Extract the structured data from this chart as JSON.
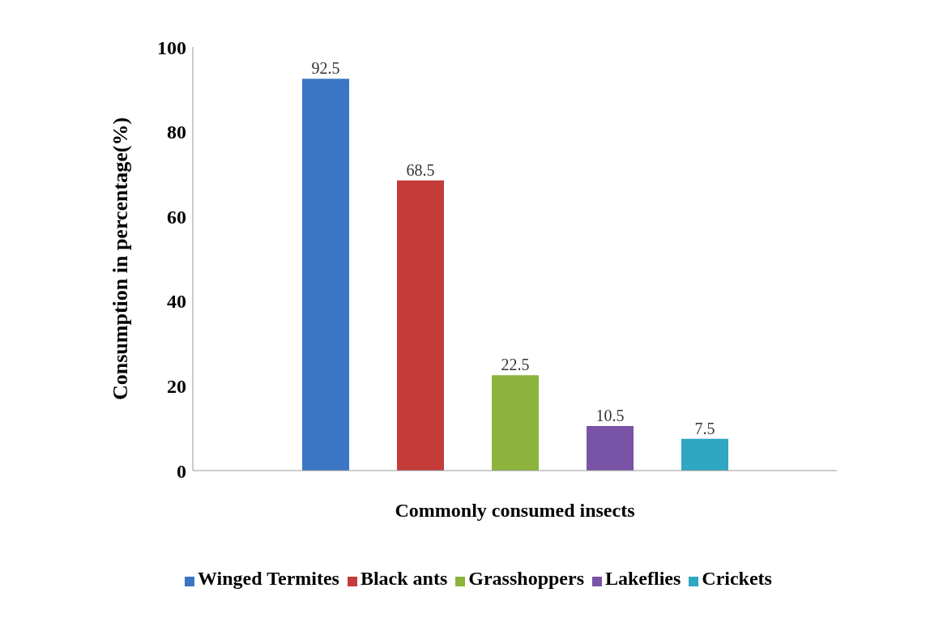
{
  "chart_data": {
    "type": "bar",
    "xlabel": "Commonly consumed insects",
    "ylabel": "Consumption in percentage(%)",
    "categories": [
      null
    ],
    "series": [
      {
        "name": "Winged Termites",
        "color": "#3a76c4",
        "values": [
          92.5
        ]
      },
      {
        "name": "Black ants",
        "color": "#c43b39",
        "values": [
          68.5
        ]
      },
      {
        "name": "Grasshoppers",
        "color": "#8cb43c",
        "values": [
          22.5
        ]
      },
      {
        "name": "Lakeflies",
        "color": "#7853a6",
        "values": [
          10.5
        ]
      },
      {
        "name": "Crickets",
        "color": "#2fa6c2",
        "values": [
          7.5
        ]
      }
    ],
    "ylim": [
      0,
      100
    ],
    "yticks": [
      0,
      20,
      40,
      60,
      80,
      100
    ],
    "data_labels": true,
    "grid": false,
    "legend": "bottom"
  }
}
